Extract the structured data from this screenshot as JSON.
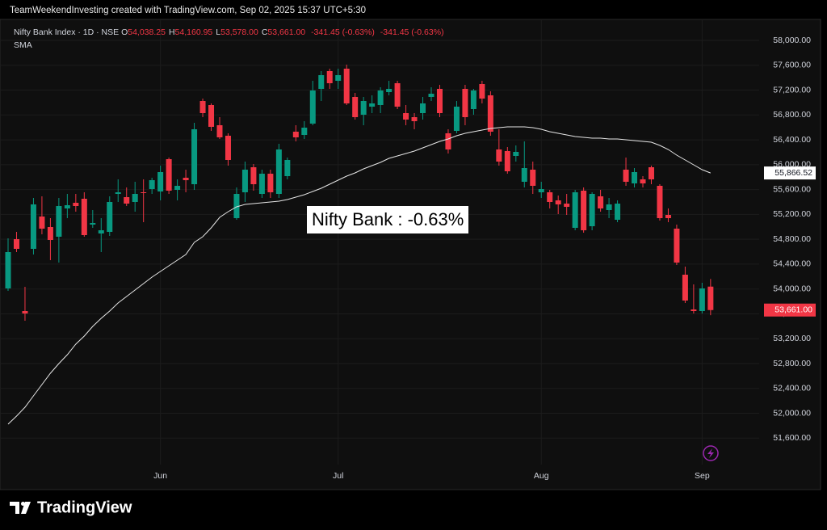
{
  "header": {
    "text": "TeamWeekendInvesting created with TradingView.com, Sep 02, 2025 15:37 UTC+5:30"
  },
  "footer": {
    "logo": "TradingView"
  },
  "chart_data": {
    "type": "candlestick",
    "symbol": "Nifty Bank Index · 1D · NSE",
    "ohlc_legend": [
      {
        "key": "O",
        "value": "54,038.25"
      },
      {
        "key": "H",
        "value": "54,160.95"
      },
      {
        "key": "L",
        "value": "53,578.00"
      },
      {
        "key": "C",
        "value": "53,661.00"
      }
    ],
    "change": [
      "-341.45 (-0.63%)",
      "-341.45 (-0.63%)"
    ],
    "annotation": "Nifty Bank : -0.63%",
    "up_color": "#089981",
    "down_color": "#f23645",
    "grid": true,
    "ylim": [
      51175,
      58260
    ],
    "yticks": [
      {
        "value": 51600,
        "label": "51,600.00"
      },
      {
        "value": 52000,
        "label": "52,000.00"
      },
      {
        "value": 52400,
        "label": "52,400.00"
      },
      {
        "value": 52800,
        "label": "52,800.00"
      },
      {
        "value": 53200,
        "label": "53,200.00"
      },
      {
        "value": 53600,
        "label": "53,600.00"
      },
      {
        "value": 54000,
        "label": "54,000.00"
      },
      {
        "value": 54400,
        "label": "54,400.00"
      },
      {
        "value": 54800,
        "label": "54,800.00"
      },
      {
        "value": 55200,
        "label": "55,200.00"
      },
      {
        "value": 55600,
        "label": "55,600.00"
      },
      {
        "value": 56000,
        "label": "56,000.00"
      },
      {
        "value": 56400,
        "label": "56,400.00"
      },
      {
        "value": 56800,
        "label": "56,800.00"
      },
      {
        "value": 57200,
        "label": "57,200.00"
      },
      {
        "value": 57600,
        "label": "57,600.00"
      },
      {
        "value": 58000,
        "label": "58,000.00"
      }
    ],
    "categories": [
      null,
      null,
      null,
      null,
      null,
      null,
      null,
      null,
      null,
      null,
      null,
      null,
      null,
      null,
      null,
      null,
      null,
      null,
      "Jun",
      null,
      null,
      null,
      null,
      null,
      null,
      null,
      null,
      null,
      null,
      null,
      null,
      null,
      null,
      null,
      null,
      null,
      null,
      null,
      null,
      "Jul",
      null,
      null,
      null,
      null,
      null,
      null,
      null,
      null,
      null,
      null,
      null,
      null,
      null,
      null,
      null,
      null,
      null,
      null,
      null,
      null,
      null,
      null,
      null,
      "Aug",
      null,
      null,
      null,
      null,
      null,
      null,
      null,
      null,
      null,
      null,
      null,
      null,
      null,
      null,
      null,
      null,
      null,
      null,
      "Sep",
      null
    ],
    "open": [
      54009,
      54802,
      53645,
      54646,
      55166,
      54997,
      54841,
      55296,
      55387,
      55452,
      55036,
      54893,
      54919,
      55530,
      55478,
      55400,
      55556,
      55608,
      55569,
      56089,
      55595,
      55790,
      55686,
      57025,
      56960,
      56635,
      56466,
      55140,
      55556,
      55959,
      55530,
      55855,
      55530,
      55816,
      56531,
      56479,
      56661,
      57220,
      57506,
      57350,
      57545,
      57090,
      56804,
      56934,
      56960,
      57168,
      57311,
      56830,
      56765,
      56830,
      57090,
      57220,
      56505,
      56544,
      57220,
      56895,
      57298,
      57116,
      56245,
      56219,
      56141,
      55725,
      55920,
      55556,
      55556,
      55426,
      55374,
      54984,
      55582,
      55010,
      55491,
      55270,
      55114,
      55920,
      55699,
      55764,
      55959,
      55660,
      55192,
      54971,
      54230,
      53671,
      53645,
      54038.25
    ],
    "high": [
      54815,
      54919,
      54035,
      55465,
      55491,
      55140,
      55465,
      55530,
      55530,
      55556,
      55270,
      55140,
      55491,
      55764,
      55634,
      55725,
      55764,
      55790,
      55985,
      56115,
      55764,
      55920,
      56674,
      57064,
      56986,
      56765,
      56505,
      55634,
      56050,
      56011,
      55920,
      55920,
      56336,
      56115,
      56635,
      56700,
      57350,
      57506,
      57545,
      57545,
      57610,
      57155,
      57090,
      57116,
      57246,
      57350,
      57350,
      56960,
      56830,
      57090,
      57246,
      57285,
      56570,
      57025,
      57285,
      57220,
      57350,
      57181,
      56570,
      56284,
      56310,
      56375,
      56050,
      55725,
      55595,
      55504,
      55530,
      55595,
      55634,
      55556,
      55595,
      55465,
      55426,
      56115,
      55946,
      55816,
      55985,
      55686,
      55296,
      55036,
      54360,
      54074,
      54100,
      54160.95
    ],
    "low": [
      53970,
      54594,
      53489,
      54555,
      54880,
      54464,
      54425,
      55140,
      55244,
      54841,
      54984,
      54594,
      54854,
      55400,
      55335,
      55244,
      55075,
      55530,
      55426,
      55530,
      55426,
      55556,
      55595,
      56765,
      56544,
      56414,
      55985,
      55114,
      55400,
      55582,
      55465,
      55465,
      55465,
      55764,
      56375,
      56414,
      56635,
      57025,
      57220,
      57220,
      56960,
      56726,
      56635,
      56830,
      56830,
      57116,
      56895,
      56635,
      56570,
      56726,
      57025,
      56765,
      56180,
      56505,
      56635,
      56804,
      56986,
      56466,
      55985,
      55855,
      56050,
      55634,
      55530,
      55465,
      55296,
      55205,
      55192,
      54945,
      54906,
      54945,
      55244,
      55140,
      55075,
      55660,
      55634,
      55634,
      55686,
      55101,
      55075,
      54386,
      53775,
      53606,
      53606,
      53578
    ],
    "close": [
      54594,
      54646,
      53606,
      55361,
      54971,
      54789,
      55335,
      55348,
      55335,
      54867,
      55062,
      54945,
      55400,
      55556,
      55374,
      55530,
      55543,
      55751,
      55881,
      55582,
      55660,
      55751,
      56570,
      56830,
      56609,
      56440,
      56076,
      55530,
      55920,
      55686,
      55855,
      55556,
      56245,
      56076,
      56440,
      56596,
      57194,
      57441,
      57311,
      57441,
      56986,
      56765,
      57025,
      56986,
      57194,
      57220,
      56934,
      56726,
      56700,
      56986,
      57142,
      56830,
      56245,
      56934,
      56765,
      57194,
      57064,
      56531,
      56050,
      55894,
      56206,
      55946,
      55660,
      55608,
      55400,
      55361,
      55322,
      55556,
      54945,
      55530,
      55296,
      55361,
      55374,
      55725,
      55881,
      55699,
      55764,
      55140,
      55140,
      54425,
      53814,
      53645,
      54009,
      53661
    ],
    "last_label": "53,661.00",
    "sma": {
      "name": "SMA",
      "color": "#e6e6e6",
      "last_label": "55,866.52",
      "values": [
        51825,
        51955,
        52098,
        52280,
        52462,
        52644,
        52800,
        52943,
        53112,
        53242,
        53398,
        53528,
        53645,
        53775,
        53879,
        53983,
        54087,
        54191,
        54282,
        54373,
        54464,
        54555,
        54750,
        54841,
        54984,
        55153,
        55244,
        55322,
        55361,
        55374,
        55387,
        55400,
        55413,
        55439,
        55478,
        55517,
        55569,
        55621,
        55686,
        55751,
        55816,
        55868,
        55933,
        55985,
        56037,
        56102,
        56141,
        56180,
        56219,
        56271,
        56323,
        56375,
        56414,
        56466,
        56505,
        56531,
        56557,
        56583,
        56596,
        56609,
        56609,
        56609,
        56596,
        56570,
        56531,
        56505,
        56479,
        56453,
        56440,
        56427,
        56427,
        56414,
        56414,
        56401,
        56388,
        56375,
        56362,
        56310,
        56245,
        56154,
        56076,
        55998,
        55920,
        55866.52
      ]
    }
  }
}
